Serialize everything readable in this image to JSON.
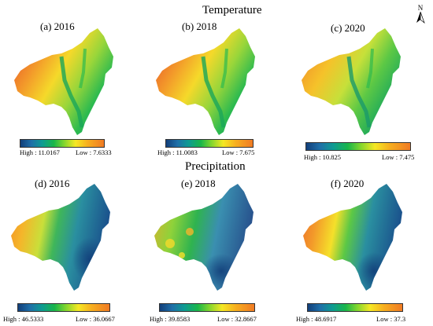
{
  "titles": {
    "temperature": "Temperature",
    "precipitation": "Precipitation"
  },
  "north_label": "N",
  "panels": [
    {
      "label": "(a) 2016",
      "variable": "temperature",
      "high": "High : 11.0167",
      "low": "Low : 7.6333"
    },
    {
      "label": "(b)  2018",
      "variable": "temperature",
      "high": "High : 11.0083",
      "low": "Low : 7.675"
    },
    {
      "label": "(c)  2020",
      "variable": "temperature",
      "high": "High : 10.825",
      "low": "Low : 7.475"
    },
    {
      "label": "(d)  2016",
      "variable": "precipitation",
      "high": "High : 46.5333",
      "low": "Low : 36.0667"
    },
    {
      "label": "(e)  2018",
      "variable": "precipitation",
      "high": "High : 39.8583",
      "low": "Low : 32.8667"
    },
    {
      "label": "(f)  2020",
      "variable": "precipitation",
      "high": "High : 48.6917",
      "low": "Low : 37.3"
    }
  ],
  "colors": {
    "ramp": [
      "#123f7a",
      "#1f6fa8",
      "#0e9b92",
      "#19b64a",
      "#7fd52e",
      "#f5e824",
      "#f7b01f",
      "#f07a24"
    ],
    "temp_hot": "#e8552a",
    "temp_warm": "#f5c92a",
    "temp_mid": "#8fd63a",
    "temp_cool": "#1fb35a",
    "temp_cold": "#0f8a8a",
    "prec_wet": "#1a4f8c",
    "prec_mid": "#2aa06a",
    "prec_dry": "#f08a2a"
  }
}
